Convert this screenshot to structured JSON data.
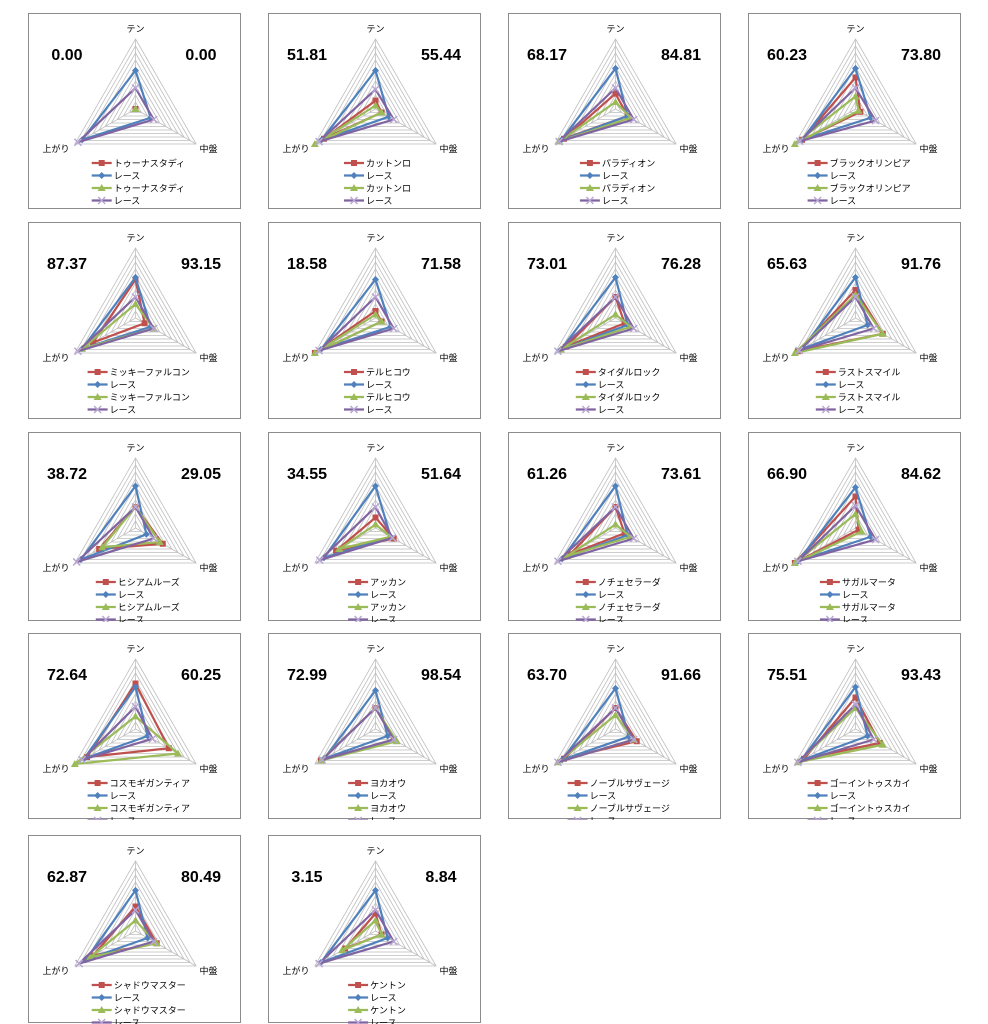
{
  "series_colors": {
    "horse_a": "#C0504D",
    "race_a": "#4F81BD",
    "horse_b": "#9BBB59",
    "race_b": "#8064A2"
  },
  "series_markers": {
    "horse_a": "square",
    "race_a": "diamond",
    "horse_b": "triangle",
    "race_b": "x"
  },
  "chart_data": [
    {
      "type": "radar",
      "axes": [
        "テン",
        "中盤",
        "上がり"
      ],
      "left_value": "0.00",
      "right_value": "0.00",
      "range": [
        0,
        1
      ],
      "rings": 10,
      "legend": "bottom",
      "series": [
        {
          "name": "トゥーナスタディ",
          "values": [
            0,
            0,
            0
          ]
        },
        {
          "name": "レース",
          "values": [
            0.55,
            0.25,
            0.88
          ]
        },
        {
          "name": "トゥーナスタディ",
          "values": [
            0,
            0,
            0
          ]
        },
        {
          "name": "レース",
          "values": [
            0.3,
            0.3,
            0.95
          ]
        }
      ]
    },
    {
      "type": "radar",
      "axes": [
        "テン",
        "中盤",
        "上がり"
      ],
      "left_value": "51.81",
      "right_value": "55.44",
      "range": [
        0,
        1
      ],
      "rings": 10,
      "legend": "bottom",
      "series": [
        {
          "name": "カットンロ",
          "values": [
            0.12,
            0.1,
            0.85
          ]
        },
        {
          "name": "レース",
          "values": [
            0.55,
            0.22,
            0.9
          ]
        },
        {
          "name": "カットンロ",
          "values": [
            0.05,
            0.1,
            1.0
          ]
        },
        {
          "name": "レース",
          "values": [
            0.28,
            0.3,
            0.93
          ]
        }
      ]
    },
    {
      "type": "radar",
      "axes": [
        "テン",
        "中盤",
        "上がり"
      ],
      "left_value": "68.17",
      "right_value": "84.81",
      "range": [
        0,
        1
      ],
      "rings": 10,
      "legend": "bottom",
      "series": [
        {
          "name": "パラディオン",
          "values": [
            0.22,
            0.2,
            0.85
          ]
        },
        {
          "name": "レース",
          "values": [
            0.58,
            0.2,
            0.9
          ]
        },
        {
          "name": "パラディオン",
          "values": [
            0.1,
            0.25,
            0.93
          ]
        },
        {
          "name": "レース",
          "values": [
            0.3,
            0.3,
            0.93
          ]
        }
      ]
    },
    {
      "type": "radar",
      "axes": [
        "テン",
        "中盤",
        "上がり"
      ],
      "left_value": "60.23",
      "right_value": "73.80",
      "range": [
        0,
        1
      ],
      "rings": 10,
      "legend": "bottom",
      "series": [
        {
          "name": "ブラックオリンピア",
          "values": [
            0.45,
            0.08,
            0.88
          ]
        },
        {
          "name": "レース",
          "values": [
            0.58,
            0.25,
            0.88
          ]
        },
        {
          "name": "ブラックオリンピア",
          "values": [
            0.18,
            0.05,
            1.0
          ]
        },
        {
          "name": "レース",
          "values": [
            0.3,
            0.33,
            0.92
          ]
        }
      ]
    },
    {
      "type": "radar",
      "axes": [
        "テン",
        "中盤",
        "上がり"
      ],
      "left_value": "87.37",
      "right_value": "93.15",
      "range": [
        0,
        1
      ],
      "rings": 10,
      "legend": "bottom",
      "series": [
        {
          "name": "ミッキーファルコン",
          "values": [
            0.55,
            0.15,
            0.7
          ]
        },
        {
          "name": "レース",
          "values": [
            0.58,
            0.25,
            0.88
          ]
        },
        {
          "name": "ミッキーファルコン",
          "values": [
            0.2,
            0.3,
            0.88
          ]
        },
        {
          "name": "レース",
          "values": [
            0.3,
            0.3,
            0.95
          ]
        }
      ]
    },
    {
      "type": "radar",
      "axes": [
        "テン",
        "中盤",
        "上がり"
      ],
      "left_value": "18.58",
      "right_value": "71.58",
      "range": [
        0,
        1
      ],
      "rings": 10,
      "legend": "bottom",
      "series": [
        {
          "name": "テルヒコウ",
          "values": [
            0.1,
            0.1,
            1.0
          ]
        },
        {
          "name": "レース",
          "values": [
            0.55,
            0.25,
            0.9
          ]
        },
        {
          "name": "テルヒコウ",
          "values": [
            0.05,
            0.1,
            1.0
          ]
        },
        {
          "name": "レース",
          "values": [
            0.3,
            0.3,
            0.93
          ]
        }
      ]
    },
    {
      "type": "radar",
      "axes": [
        "テン",
        "中盤",
        "上がり"
      ],
      "left_value": "73.01",
      "right_value": "76.28",
      "range": [
        0,
        1
      ],
      "rings": 10,
      "legend": "bottom",
      "series": [
        {
          "name": "タイダルロック",
          "values": [
            0.3,
            0.15,
            0.82
          ]
        },
        {
          "name": "レース",
          "values": [
            0.58,
            0.2,
            0.9
          ]
        },
        {
          "name": "タイダルロック",
          "values": [
            0.05,
            0.25,
            0.9
          ]
        },
        {
          "name": "レース",
          "values": [
            0.3,
            0.3,
            0.95
          ]
        }
      ]
    },
    {
      "type": "radar",
      "axes": [
        "テン",
        "中盤",
        "上がり"
      ],
      "left_value": "65.63",
      "right_value": "91.76",
      "range": [
        0,
        1
      ],
      "rings": 10,
      "legend": "bottom",
      "series": [
        {
          "name": "ラストスマイル",
          "values": [
            0.4,
            0.45,
            0.95
          ]
        },
        {
          "name": "レース",
          "values": [
            0.58,
            0.2,
            0.88
          ]
        },
        {
          "name": "ラストスマイル",
          "values": [
            0.33,
            0.45,
            1.0
          ]
        },
        {
          "name": "レース",
          "values": [
            0.3,
            0.3,
            0.93
          ]
        }
      ]
    },
    {
      "type": "radar",
      "axes": [
        "テン",
        "中盤",
        "上がり"
      ],
      "left_value": "38.72",
      "right_value": "29.05",
      "range": [
        0,
        1
      ],
      "rings": 10,
      "legend": "bottom",
      "series": [
        {
          "name": "ヒシアムルーズ",
          "values": [
            0.3,
            0.45,
            0.6
          ]
        },
        {
          "name": "レース",
          "values": [
            0.6,
            0.18,
            0.9
          ]
        },
        {
          "name": "ヒシアムルーズ",
          "values": [
            0.3,
            0.4,
            0.55
          ]
        },
        {
          "name": "レース",
          "values": [
            0.3,
            0.3,
            0.97
          ]
        }
      ]
    },
    {
      "type": "radar",
      "axes": [
        "テン",
        "中盤",
        "上がり"
      ],
      "left_value": "34.55",
      "right_value": "51.64",
      "range": [
        0,
        1
      ],
      "rings": 10,
      "legend": "bottom",
      "series": [
        {
          "name": "アッカン",
          "values": [
            0.15,
            0.3,
            0.65
          ]
        },
        {
          "name": "レース",
          "values": [
            0.6,
            0.25,
            0.85
          ]
        },
        {
          "name": "アッカン",
          "values": [
            0.05,
            0.25,
            0.6
          ]
        },
        {
          "name": "レース",
          "values": [
            0.3,
            0.28,
            0.92
          ]
        }
      ]
    },
    {
      "type": "radar",
      "axes": [
        "テン",
        "中盤",
        "上がり"
      ],
      "left_value": "61.26",
      "right_value": "73.61",
      "range": [
        0,
        1
      ],
      "rings": 10,
      "legend": "bottom",
      "series": [
        {
          "name": "ノチェセラーダ",
          "values": [
            0.3,
            0.15,
            0.75
          ]
        },
        {
          "name": "レース",
          "values": [
            0.6,
            0.2,
            0.88
          ]
        },
        {
          "name": "ノチェセラーダ",
          "values": [
            0.05,
            0.25,
            0.8
          ]
        },
        {
          "name": "レース",
          "values": [
            0.3,
            0.3,
            0.95
          ]
        }
      ]
    },
    {
      "type": "radar",
      "axes": [
        "テン",
        "中盤",
        "上がり"
      ],
      "left_value": "66.90",
      "right_value": "84.62",
      "range": [
        0,
        1
      ],
      "rings": 10,
      "legend": "bottom",
      "series": [
        {
          "name": "サガルマータ",
          "values": [
            0.45,
            0.05,
            1.0
          ]
        },
        {
          "name": "レース",
          "values": [
            0.58,
            0.25,
            0.95
          ]
        },
        {
          "name": "サガルマータ",
          "values": [
            0.2,
            0.1,
            1.0
          ]
        },
        {
          "name": "レース",
          "values": [
            0.32,
            0.33,
            0.95
          ]
        }
      ]
    },
    {
      "type": "radar",
      "axes": [
        "テン",
        "中盤",
        "上がり"
      ],
      "left_value": "72.64",
      "right_value": "60.25",
      "range": [
        0,
        1
      ],
      "rings": 10,
      "legend": "bottom",
      "series": [
        {
          "name": "コスモギガンティア",
          "values": [
            0.65,
            0.55,
            0.8
          ]
        },
        {
          "name": "レース",
          "values": [
            0.6,
            0.2,
            0.85
          ]
        },
        {
          "name": "コスモギガンティア",
          "values": [
            0.18,
            0.7,
            1.0
          ]
        },
        {
          "name": "レース",
          "values": [
            0.32,
            0.28,
            0.88
          ]
        }
      ]
    },
    {
      "type": "radar",
      "axes": [
        "テン",
        "中盤",
        "上がり"
      ],
      "left_value": "72.99",
      "right_value": "98.54",
      "range": [
        0,
        1
      ],
      "rings": 10,
      "legend": "bottom",
      "series": [
        {
          "name": "ヨカオウ",
          "values": [
            0.3,
            0.3,
            0.9
          ]
        },
        {
          "name": "レース",
          "values": [
            0.55,
            0.2,
            0.85
          ]
        },
        {
          "name": "ヨカオウ",
          "values": [
            0.3,
            0.35,
            0.9
          ]
        },
        {
          "name": "レース",
          "values": [
            0.3,
            0.3,
            0.88
          ]
        }
      ]
    },
    {
      "type": "radar",
      "axes": [
        "テン",
        "中盤",
        "上がり"
      ],
      "left_value": "63.70",
      "right_value": "91.66",
      "range": [
        0,
        1
      ],
      "rings": 10,
      "legend": "bottom",
      "series": [
        {
          "name": "ノーブルサヴェージ",
          "values": [
            0.3,
            0.35,
            0.85
          ]
        },
        {
          "name": "レース",
          "values": [
            0.58,
            0.22,
            0.88
          ]
        },
        {
          "name": "ノーブルサヴェージ",
          "values": [
            0.2,
            0.3,
            0.95
          ]
        },
        {
          "name": "レース",
          "values": [
            0.3,
            0.3,
            0.95
          ]
        }
      ]
    },
    {
      "type": "radar",
      "axes": [
        "テン",
        "中盤",
        "上がり"
      ],
      "left_value": "75.51",
      "right_value": "93.43",
      "range": [
        0,
        1
      ],
      "rings": 10,
      "legend": "bottom",
      "series": [
        {
          "name": "ゴーイントゥスカイ",
          "values": [
            0.45,
            0.4,
            0.85
          ]
        },
        {
          "name": "レース",
          "values": [
            0.6,
            0.2,
            0.9
          ]
        },
        {
          "name": "ゴーイントゥスカイ",
          "values": [
            0.3,
            0.45,
            0.95
          ]
        },
        {
          "name": "レース",
          "values": [
            0.35,
            0.3,
            0.95
          ]
        }
      ]
    },
    {
      "type": "radar",
      "axes": [
        "テン",
        "中盤",
        "上がり"
      ],
      "left_value": "62.87",
      "right_value": "80.49",
      "range": [
        0,
        1
      ],
      "rings": 10,
      "legend": "bottom",
      "series": [
        {
          "name": "シャドウマスター",
          "values": [
            0.35,
            0.35,
            0.7
          ]
        },
        {
          "name": "レース",
          "values": [
            0.58,
            0.2,
            0.82
          ]
        },
        {
          "name": "シャドウマスター",
          "values": [
            0.15,
            0.35,
            0.75
          ]
        },
        {
          "name": "レース",
          "values": [
            0.3,
            0.3,
            0.93
          ]
        }
      ]
    },
    {
      "type": "radar",
      "axes": [
        "テン",
        "中盤",
        "上がり"
      ],
      "left_value": "3.15",
      "right_value": "8.84",
      "range": [
        0,
        1
      ],
      "rings": 10,
      "legend": "bottom",
      "series": [
        {
          "name": "ケントン",
          "values": [
            0.25,
            0.1,
            0.5
          ]
        },
        {
          "name": "レース",
          "values": [
            0.58,
            0.2,
            0.9
          ]
        },
        {
          "name": "ケントン",
          "values": [
            0.15,
            0.1,
            0.55
          ]
        },
        {
          "name": "レース",
          "values": [
            0.3,
            0.3,
            0.93
          ]
        }
      ]
    }
  ]
}
